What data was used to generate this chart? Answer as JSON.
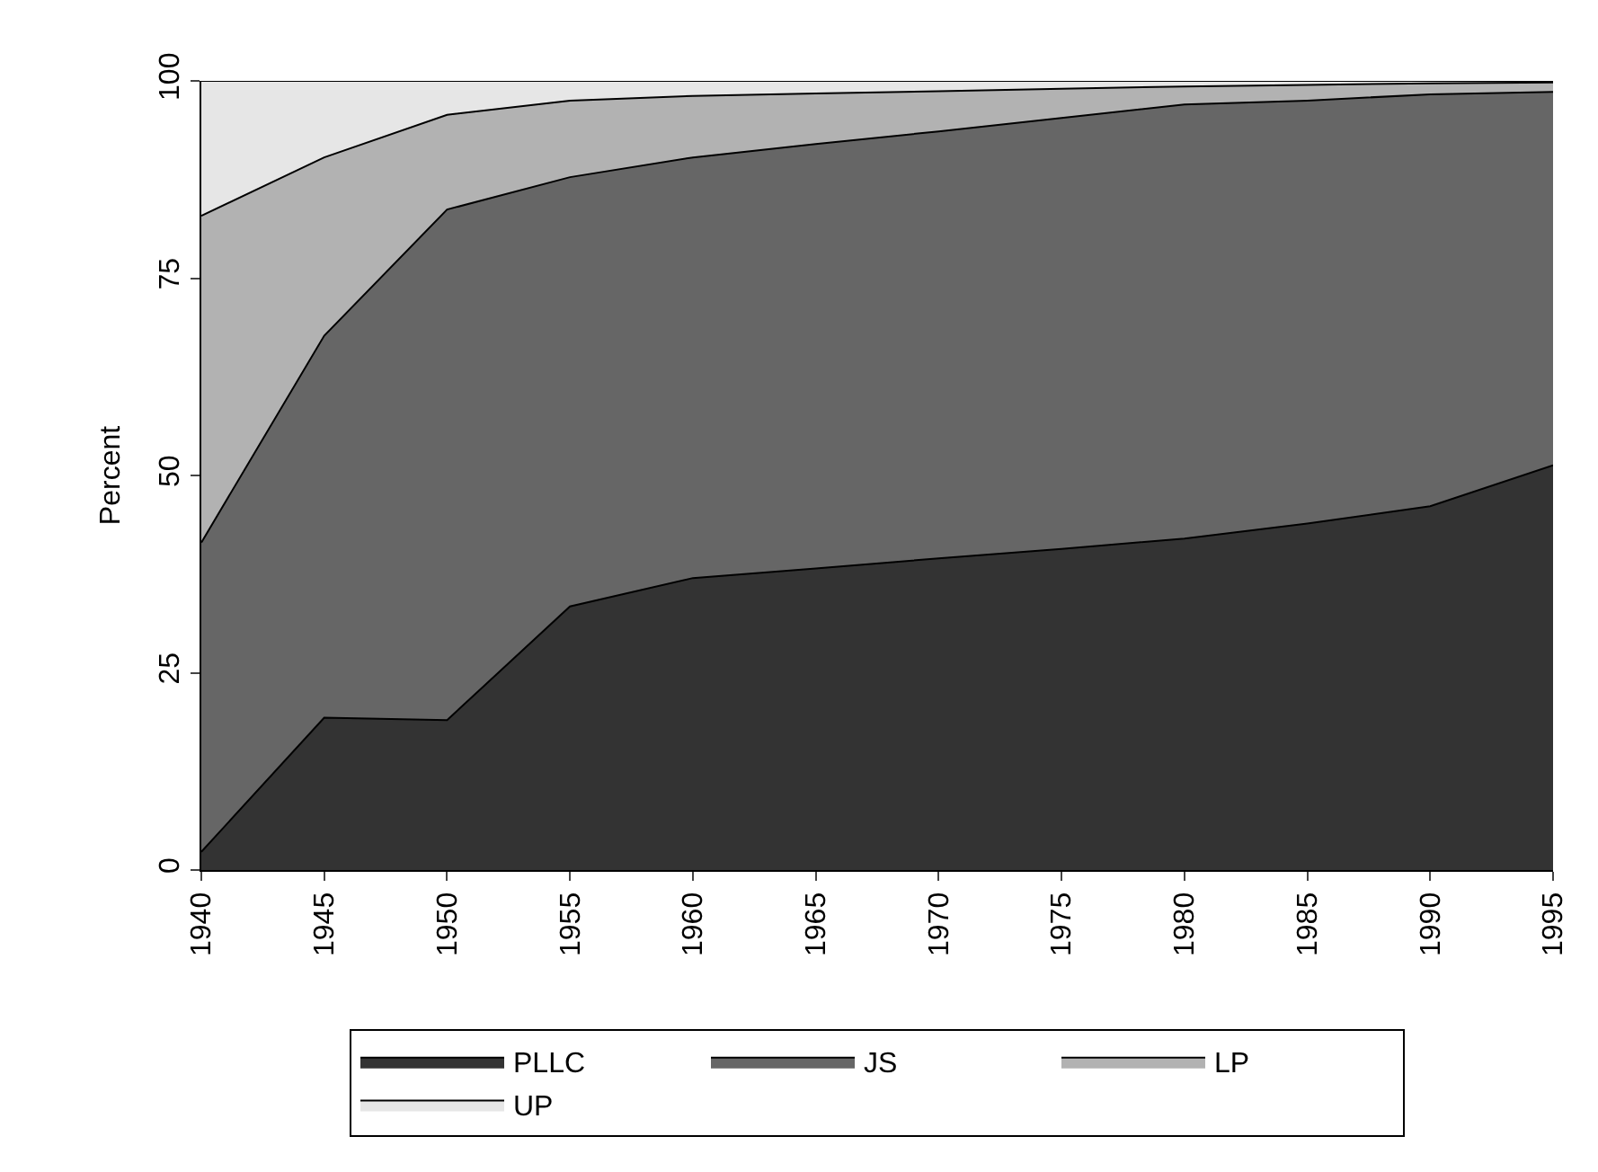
{
  "chart_data": {
    "type": "area",
    "stacked": true,
    "ylabel": "Percent",
    "x": [
      1940,
      1945,
      1950,
      1955,
      1960,
      1965,
      1970,
      1975,
      1980,
      1985,
      1990,
      1995
    ],
    "series": [
      {
        "name": "PLLC",
        "color": "#333333",
        "values": [
          2.3,
          19.3,
          19.0,
          33.4,
          37.0,
          38.2,
          39.5,
          40.7,
          42.0,
          43.9,
          46.1,
          51.3
        ]
      },
      {
        "name": "JS",
        "color": "#666666",
        "values": [
          39.2,
          48.4,
          64.7,
          54.4,
          53.3,
          53.8,
          54.1,
          54.6,
          55.0,
          53.6,
          52.2,
          47.3
        ]
      },
      {
        "name": "LP",
        "color": "#b2b2b2",
        "values": [
          41.4,
          22.6,
          12.0,
          9.7,
          7.8,
          6.4,
          5.1,
          3.7,
          2.3,
          2.0,
          1.4,
          1.2
        ]
      },
      {
        "name": "UP",
        "color": "#e6e6e6",
        "values": [
          17.1,
          9.7,
          4.3,
          2.5,
          1.9,
          1.6,
          1.3,
          1.0,
          0.7,
          0.5,
          0.3,
          0.2
        ]
      }
    ],
    "xlim": [
      1940,
      1995
    ],
    "xticks": [
      1940,
      1945,
      1950,
      1955,
      1960,
      1965,
      1970,
      1975,
      1980,
      1985,
      1990,
      1995
    ],
    "ylim": [
      0,
      100
    ],
    "yticks": [
      0,
      25,
      50,
      75,
      100
    ],
    "legend": "bottom"
  }
}
